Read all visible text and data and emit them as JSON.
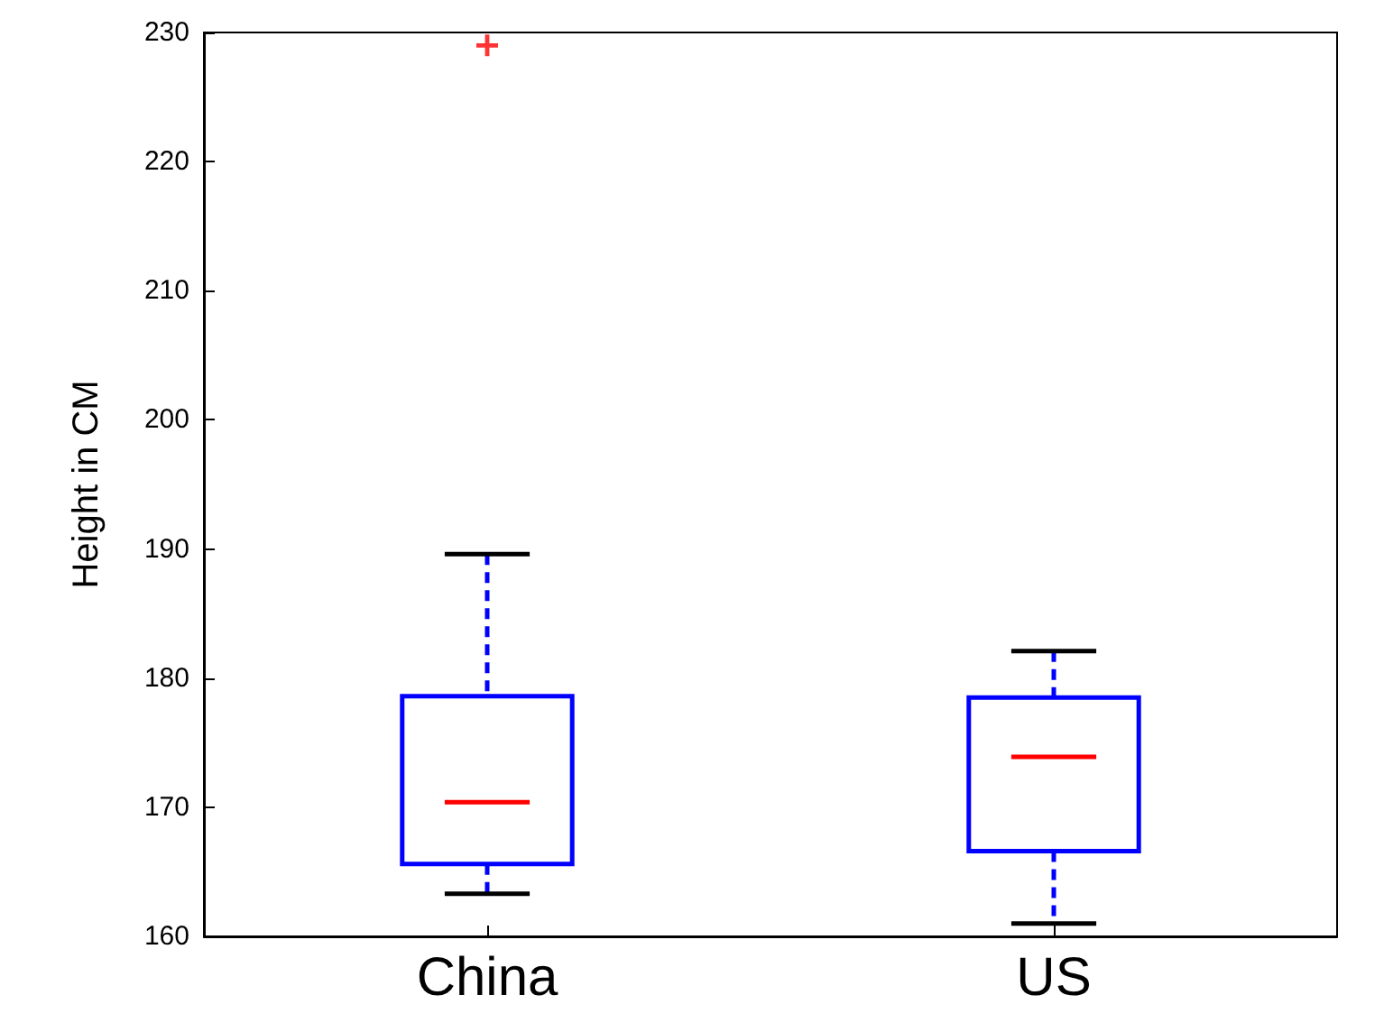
{
  "chart_data": {
    "type": "box",
    "categories": [
      "China",
      "US"
    ],
    "ylabel": "Height in CM",
    "ylim": [
      160,
      230
    ],
    "yticks": [
      160,
      170,
      180,
      190,
      200,
      210,
      220,
      230
    ],
    "grid": false,
    "marker": "cross",
    "series": [
      {
        "color": "#0000ff",
        "boxes": [
          {
            "low": 163.3,
            "q1": 165.6,
            "median": 170.4,
            "q3": 178.6,
            "high": 189.6,
            "outliers": [
              229
            ]
          },
          {
            "low": 161.0,
            "q1": 166.6,
            "median": 173.9,
            "q3": 178.5,
            "high": 182.1
          }
        ]
      }
    ]
  }
}
